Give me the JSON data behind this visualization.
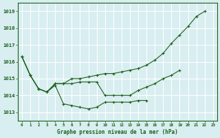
{
  "title": "Graphe pression niveau de la mer (hPa)",
  "bg_color": "#d8eef0",
  "grid_color": "#ffffff",
  "line_color": "#1a5e1a",
  "hours": [
    0,
    1,
    2,
    3,
    4,
    5,
    6,
    7,
    8,
    9,
    10,
    11,
    12,
    13,
    14,
    15,
    16,
    17,
    18,
    19,
    20,
    21,
    22,
    23
  ],
  "curve1": [
    1016.3,
    1015.2,
    1014.4,
    1014.2,
    1014.6,
    1013.5,
    1013.4,
    1013.3,
    1013.2,
    1013.3,
    1013.6,
    1013.6,
    1013.6,
    1013.6,
    1013.7,
    1013.7,
    null,
    null,
    null,
    null,
    null,
    null,
    null,
    null
  ],
  "curve2": [
    1016.3,
    1015.2,
    1014.4,
    1014.2,
    1014.7,
    1014.7,
    1014.7,
    1014.8,
    1014.8,
    1014.8,
    1014.0,
    1014.0,
    1014.0,
    1014.0,
    1014.3,
    1014.5,
    1014.7,
    1015.0,
    1015.2,
    1015.5,
    null,
    null,
    null,
    null
  ],
  "curve3": [
    1016.3,
    1015.2,
    1014.4,
    1014.2,
    1014.7,
    1014.7,
    1015.0,
    1015.0,
    1015.1,
    1015.2,
    1015.3,
    1015.3,
    1015.4,
    1015.5,
    1015.6,
    1015.8,
    1016.1,
    1016.5,
    1017.1,
    1017.6,
    1018.1,
    1018.7,
    1019.0,
    null
  ],
  "ylim": [
    1012.5,
    1019.5
  ],
  "yticks": [
    1013,
    1014,
    1015,
    1016,
    1017,
    1018,
    1019
  ],
  "figsize": [
    3.2,
    2.0
  ],
  "dpi": 100
}
